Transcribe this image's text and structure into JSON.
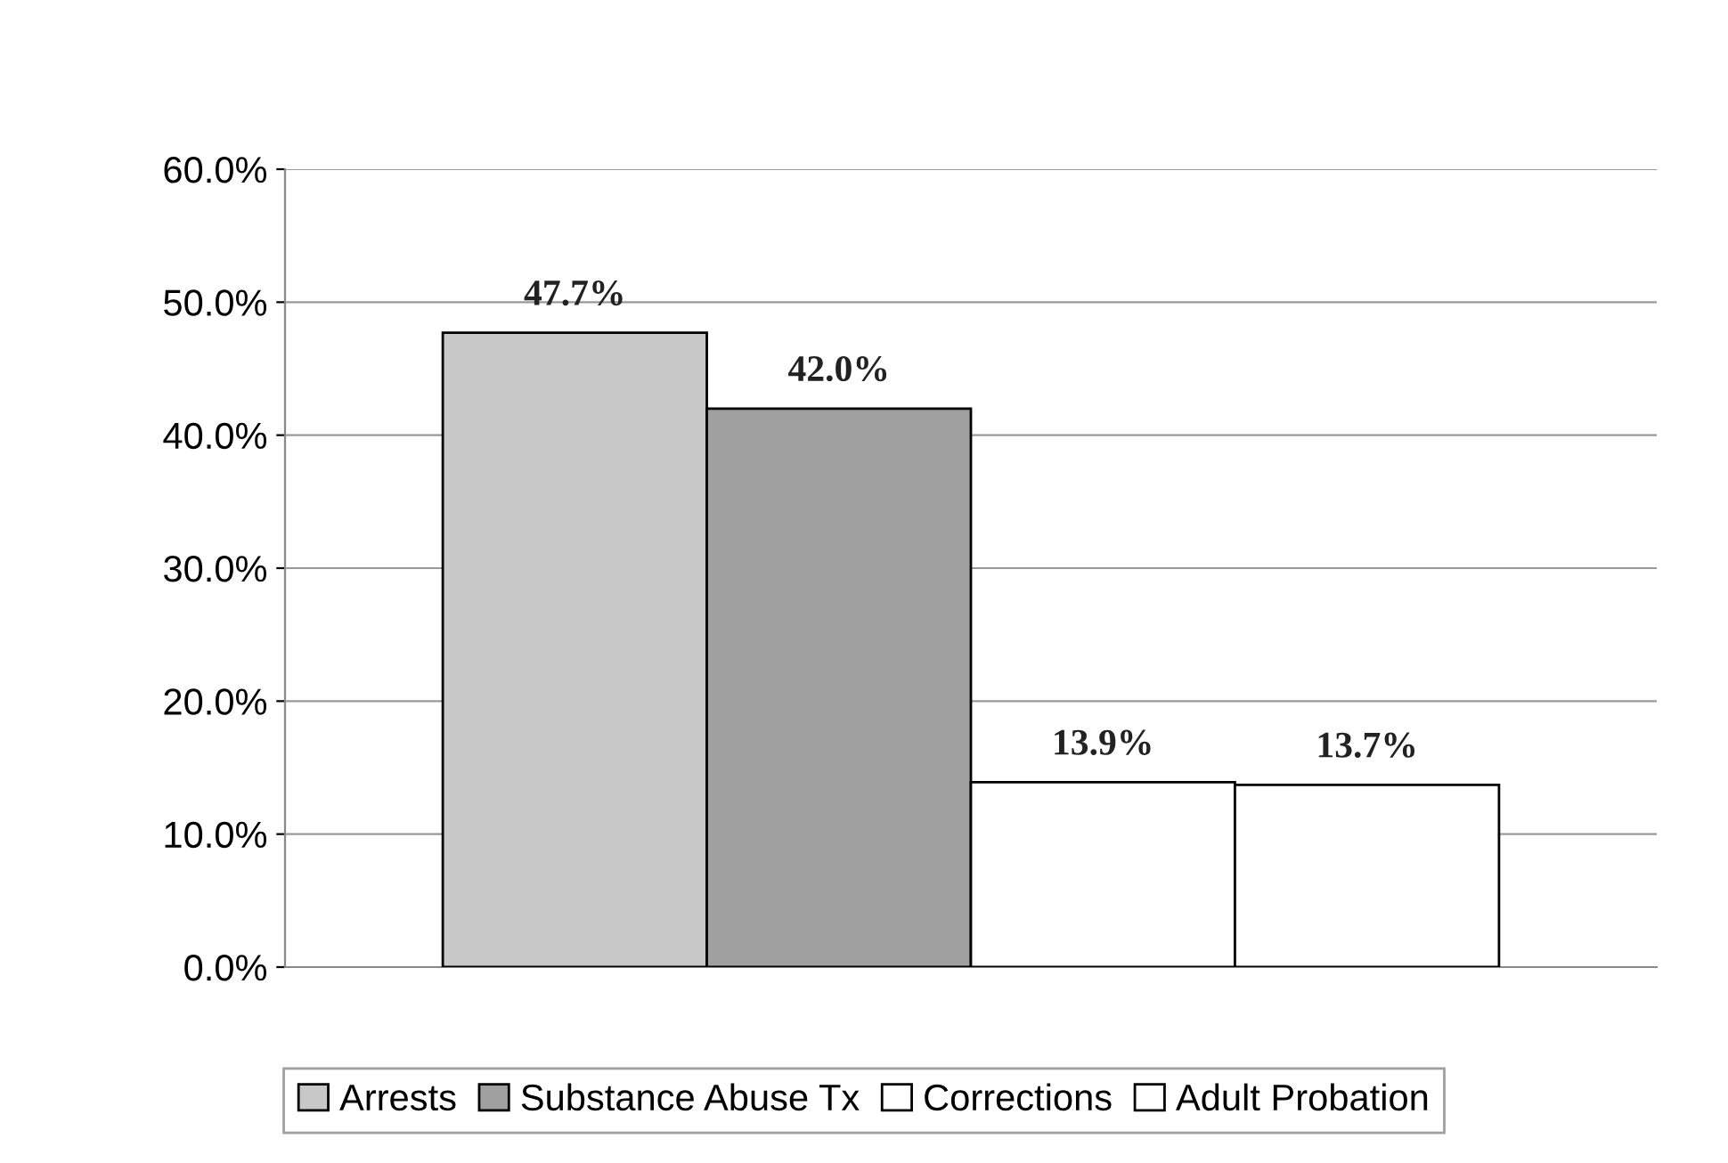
{
  "chart_data": {
    "type": "bar",
    "categories": [
      null
    ],
    "series": [
      {
        "name": "Arrests",
        "color": "#c8c8c8",
        "values": [
          47.7
        ],
        "value_labels": [
          "47.7%"
        ]
      },
      {
        "name": "Substance Abuse Tx",
        "color": "#a0a0a0",
        "values": [
          42.0
        ],
        "value_labels": [
          "42.0%"
        ]
      },
      {
        "name": "Corrections",
        "color": "#ffffff",
        "values": [
          13.9
        ],
        "value_labels": [
          "13.9%"
        ]
      },
      {
        "name": "Adult Probation",
        "color": "#ffffff",
        "values": [
          13.7
        ],
        "value_labels": [
          "13.7%"
        ]
      }
    ],
    "ylim": [
      0,
      60
    ],
    "yticks": [
      {
        "value": 0,
        "label": "0.0%"
      },
      {
        "value": 10,
        "label": "10.0%"
      },
      {
        "value": 20,
        "label": "20.0%"
      },
      {
        "value": 30,
        "label": "30.0%"
      },
      {
        "value": 40,
        "label": "40.0%"
      },
      {
        "value": 50,
        "label": "50.0%"
      },
      {
        "value": 60,
        "label": "60.0%"
      }
    ],
    "grid": "y",
    "legend": "bottom"
  }
}
